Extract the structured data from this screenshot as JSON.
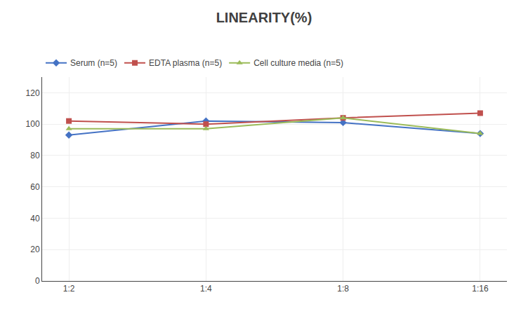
{
  "chart_data": {
    "type": "line",
    "title": "LINEARITY(%)",
    "categories": [
      "1:2",
      "1:4",
      "1:8",
      "1:16"
    ],
    "series": [
      {
        "name": "Serum (n=5)",
        "color": "#4472C4",
        "marker": "diamond",
        "values": [
          93,
          102,
          101,
          94
        ]
      },
      {
        "name": "EDTA plasma (n=5)",
        "color": "#C0504D",
        "marker": "square",
        "values": [
          102,
          100,
          104,
          107
        ]
      },
      {
        "name": "Cell culture media (n=5)",
        "color": "#9BBB59",
        "marker": "triangle",
        "values": [
          97,
          97,
          104,
          94
        ]
      }
    ],
    "ylim": [
      0,
      130
    ],
    "yticks": [
      0,
      20,
      40,
      60,
      80,
      100,
      120
    ],
    "grid": true,
    "legend": "upper left"
  }
}
